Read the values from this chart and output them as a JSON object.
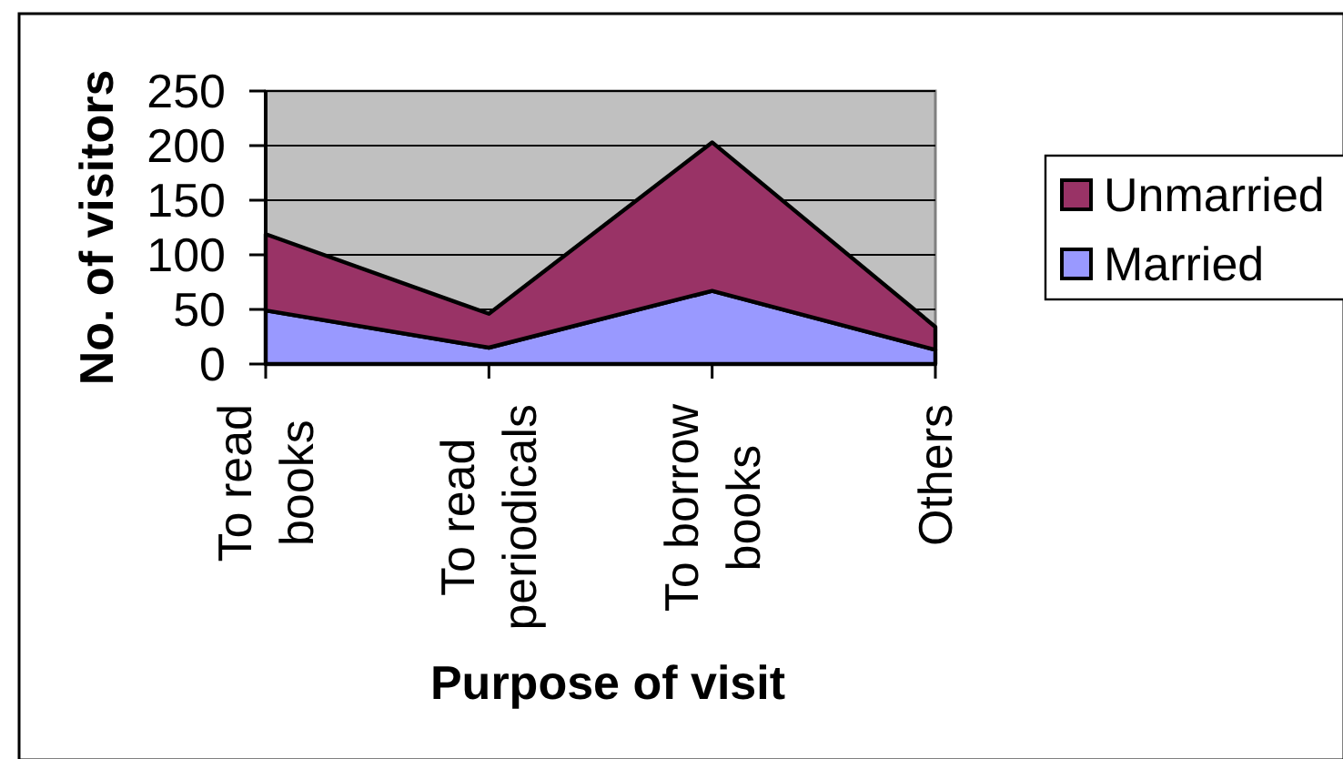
{
  "chart_data": {
    "type": "area",
    "stacked": true,
    "xlabel": "Purpose of visit",
    "ylabel": "No. of visitors",
    "categories": [
      "To read books",
      "To read periodicals",
      "To borrow books",
      "Others"
    ],
    "series": [
      {
        "name": "Married",
        "color": "#9999ff",
        "values": [
          49,
          15,
          67,
          13
        ]
      },
      {
        "name": "Unmarried",
        "color": "#993366",
        "values": [
          70,
          31,
          136,
          21
        ]
      }
    ],
    "ylim": [
      0,
      250
    ],
    "yticks": [
      0,
      50,
      100,
      150,
      200,
      250
    ],
    "grid": "y",
    "legend": "right"
  }
}
